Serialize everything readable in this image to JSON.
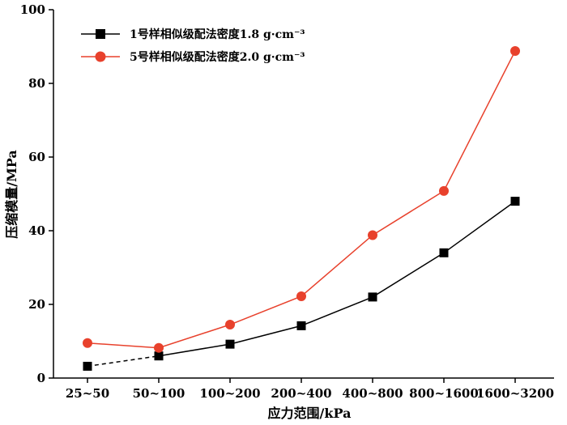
{
  "chart_data": {
    "type": "line",
    "categories": [
      "25~50",
      "50~100",
      "100~200",
      "200~400",
      "400~800",
      "800~1600",
      "1600~3200"
    ],
    "series": [
      {
        "name": "1号样相似级配法密度1.8 g·cm⁻³",
        "values": [
          3.2,
          6.0,
          9.2,
          14.2,
          22.0,
          34.0,
          48.0
        ],
        "color": "#000000",
        "marker": "square",
        "line_style": "solid-with-dashed-first-segment"
      },
      {
        "name": "5号样相似级配法密度2.0 g·cm⁻³",
        "values": [
          9.5,
          8.2,
          14.5,
          22.2,
          38.8,
          50.8,
          88.8
        ],
        "color": "#e8412c",
        "marker": "circle",
        "line_style": "solid"
      }
    ],
    "xlabel": "应力范围/kPa",
    "ylabel": "压缩模量/MPa",
    "ylim": [
      0,
      100
    ],
    "yticks": [
      0,
      20,
      40,
      60,
      80,
      100
    ],
    "grid": false,
    "legend_position": "top-left"
  }
}
